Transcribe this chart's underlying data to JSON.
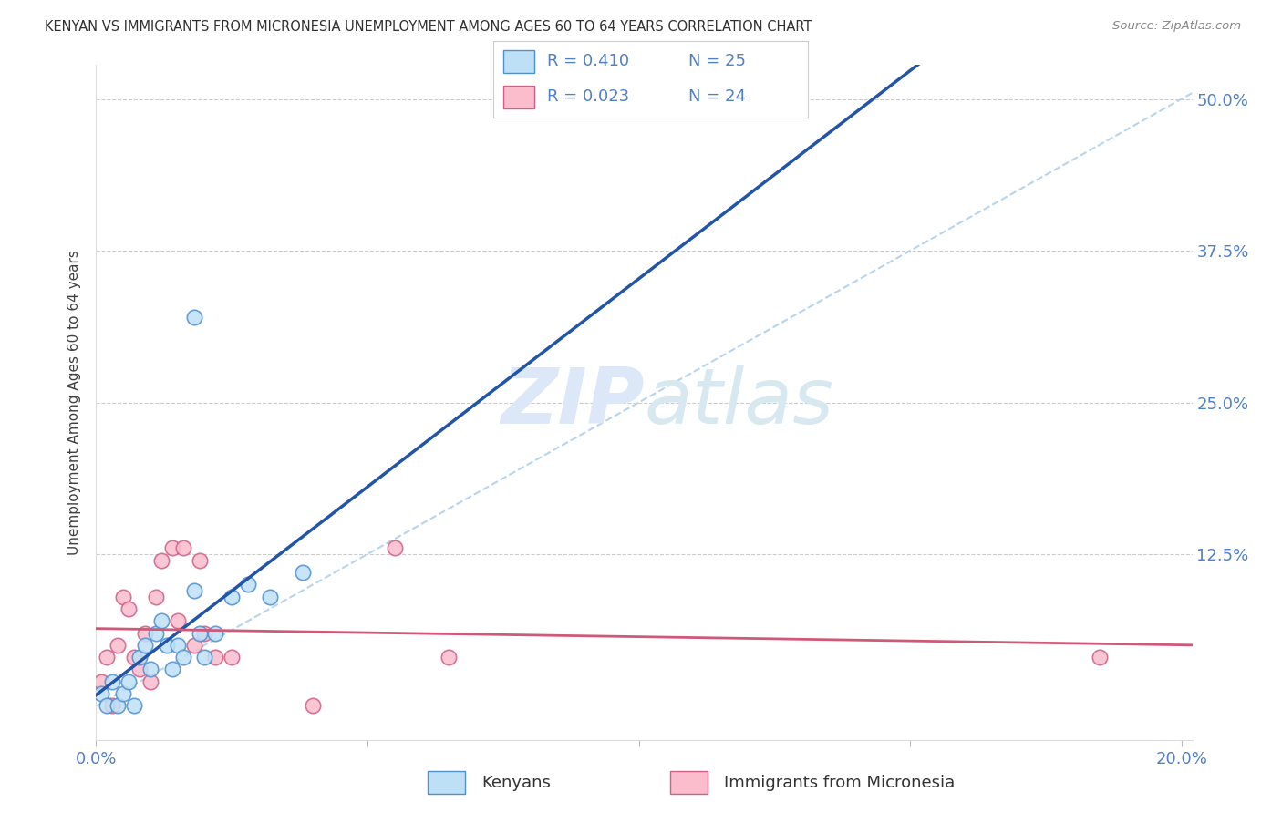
{
  "title": "KENYAN VS IMMIGRANTS FROM MICRONESIA UNEMPLOYMENT AMONG AGES 60 TO 64 YEARS CORRELATION CHART",
  "source": "Source: ZipAtlas.com",
  "ylabel": "Unemployment Among Ages 60 to 64 years",
  "xlim": [
    0.0,
    0.202
  ],
  "ylim": [
    -0.028,
    0.528
  ],
  "xticks": [
    0.0,
    0.05,
    0.1,
    0.15,
    0.2
  ],
  "xtick_labels": [
    "0.0%",
    "",
    "",
    "",
    "20.0%"
  ],
  "yticks": [
    0.0,
    0.125,
    0.25,
    0.375,
    0.5
  ],
  "ytick_labels": [
    "",
    "12.5%",
    "25.0%",
    "37.5%",
    "50.0%"
  ],
  "kenyan_x": [
    0.001,
    0.002,
    0.003,
    0.004,
    0.005,
    0.006,
    0.007,
    0.008,
    0.009,
    0.01,
    0.011,
    0.012,
    0.013,
    0.014,
    0.015,
    0.016,
    0.018,
    0.019,
    0.02,
    0.022,
    0.025,
    0.028,
    0.032,
    0.038,
    0.018
  ],
  "kenyan_y": [
    0.01,
    0.0,
    0.02,
    0.0,
    0.01,
    0.02,
    0.0,
    0.04,
    0.05,
    0.03,
    0.06,
    0.07,
    0.05,
    0.03,
    0.05,
    0.04,
    0.095,
    0.06,
    0.04,
    0.06,
    0.09,
    0.1,
    0.09,
    0.11,
    0.32
  ],
  "micro_x": [
    0.001,
    0.002,
    0.003,
    0.004,
    0.005,
    0.006,
    0.007,
    0.008,
    0.009,
    0.01,
    0.011,
    0.012,
    0.014,
    0.015,
    0.016,
    0.018,
    0.019,
    0.02,
    0.022,
    0.025,
    0.04,
    0.055,
    0.065,
    0.185
  ],
  "micro_y": [
    0.02,
    0.04,
    0.0,
    0.05,
    0.09,
    0.08,
    0.04,
    0.03,
    0.06,
    0.02,
    0.09,
    0.12,
    0.13,
    0.07,
    0.13,
    0.05,
    0.12,
    0.06,
    0.04,
    0.04,
    0.0,
    0.13,
    0.04,
    0.04
  ],
  "kenyan_R": 0.41,
  "kenyan_N": 25,
  "micro_R": 0.023,
  "micro_N": 24,
  "kenyan_scatter_face": "#bee0f7",
  "kenyan_scatter_edge": "#5090d0",
  "kenyan_line_color": "#2255aa",
  "micro_scatter_face": "#fbbccc",
  "micro_scatter_edge": "#d0608a",
  "micro_line_color": "#d05878",
  "diag_color": "#b8d4ee",
  "grid_color": "#cccccc",
  "title_color": "#303030",
  "axis_color": "#5080c8",
  "background_color": "#ffffff",
  "watermark_color": "#dce8f8"
}
